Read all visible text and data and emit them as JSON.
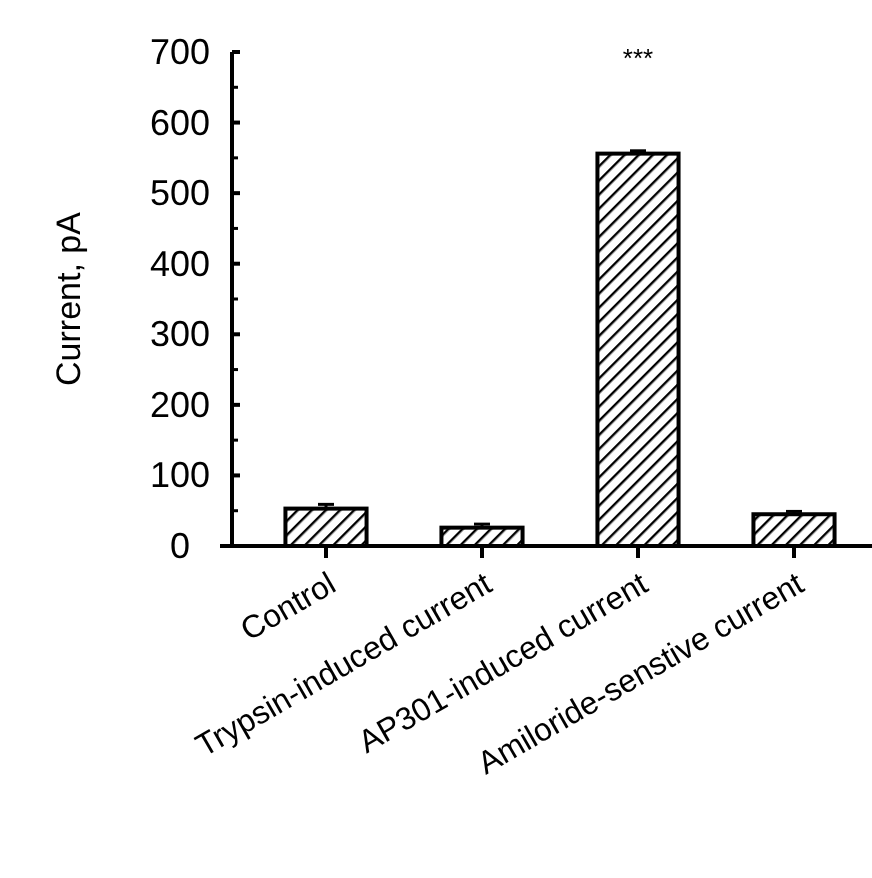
{
  "chart_data": {
    "type": "bar",
    "ylabel": "Current, pA",
    "categories": [
      "Control",
      "Trypsin-induced current",
      "AP301-induced current",
      "Amiloride-senstive current"
    ],
    "values": [
      53,
      26,
      556,
      45
    ],
    "errors": [
      6,
      5,
      4,
      4
    ],
    "color": "#000000",
    "ylim": [
      0,
      700
    ],
    "yticks": [
      0,
      100,
      200,
      300,
      400,
      500,
      600,
      700
    ],
    "grid": false,
    "annotations": [
      "***"
    ]
  }
}
